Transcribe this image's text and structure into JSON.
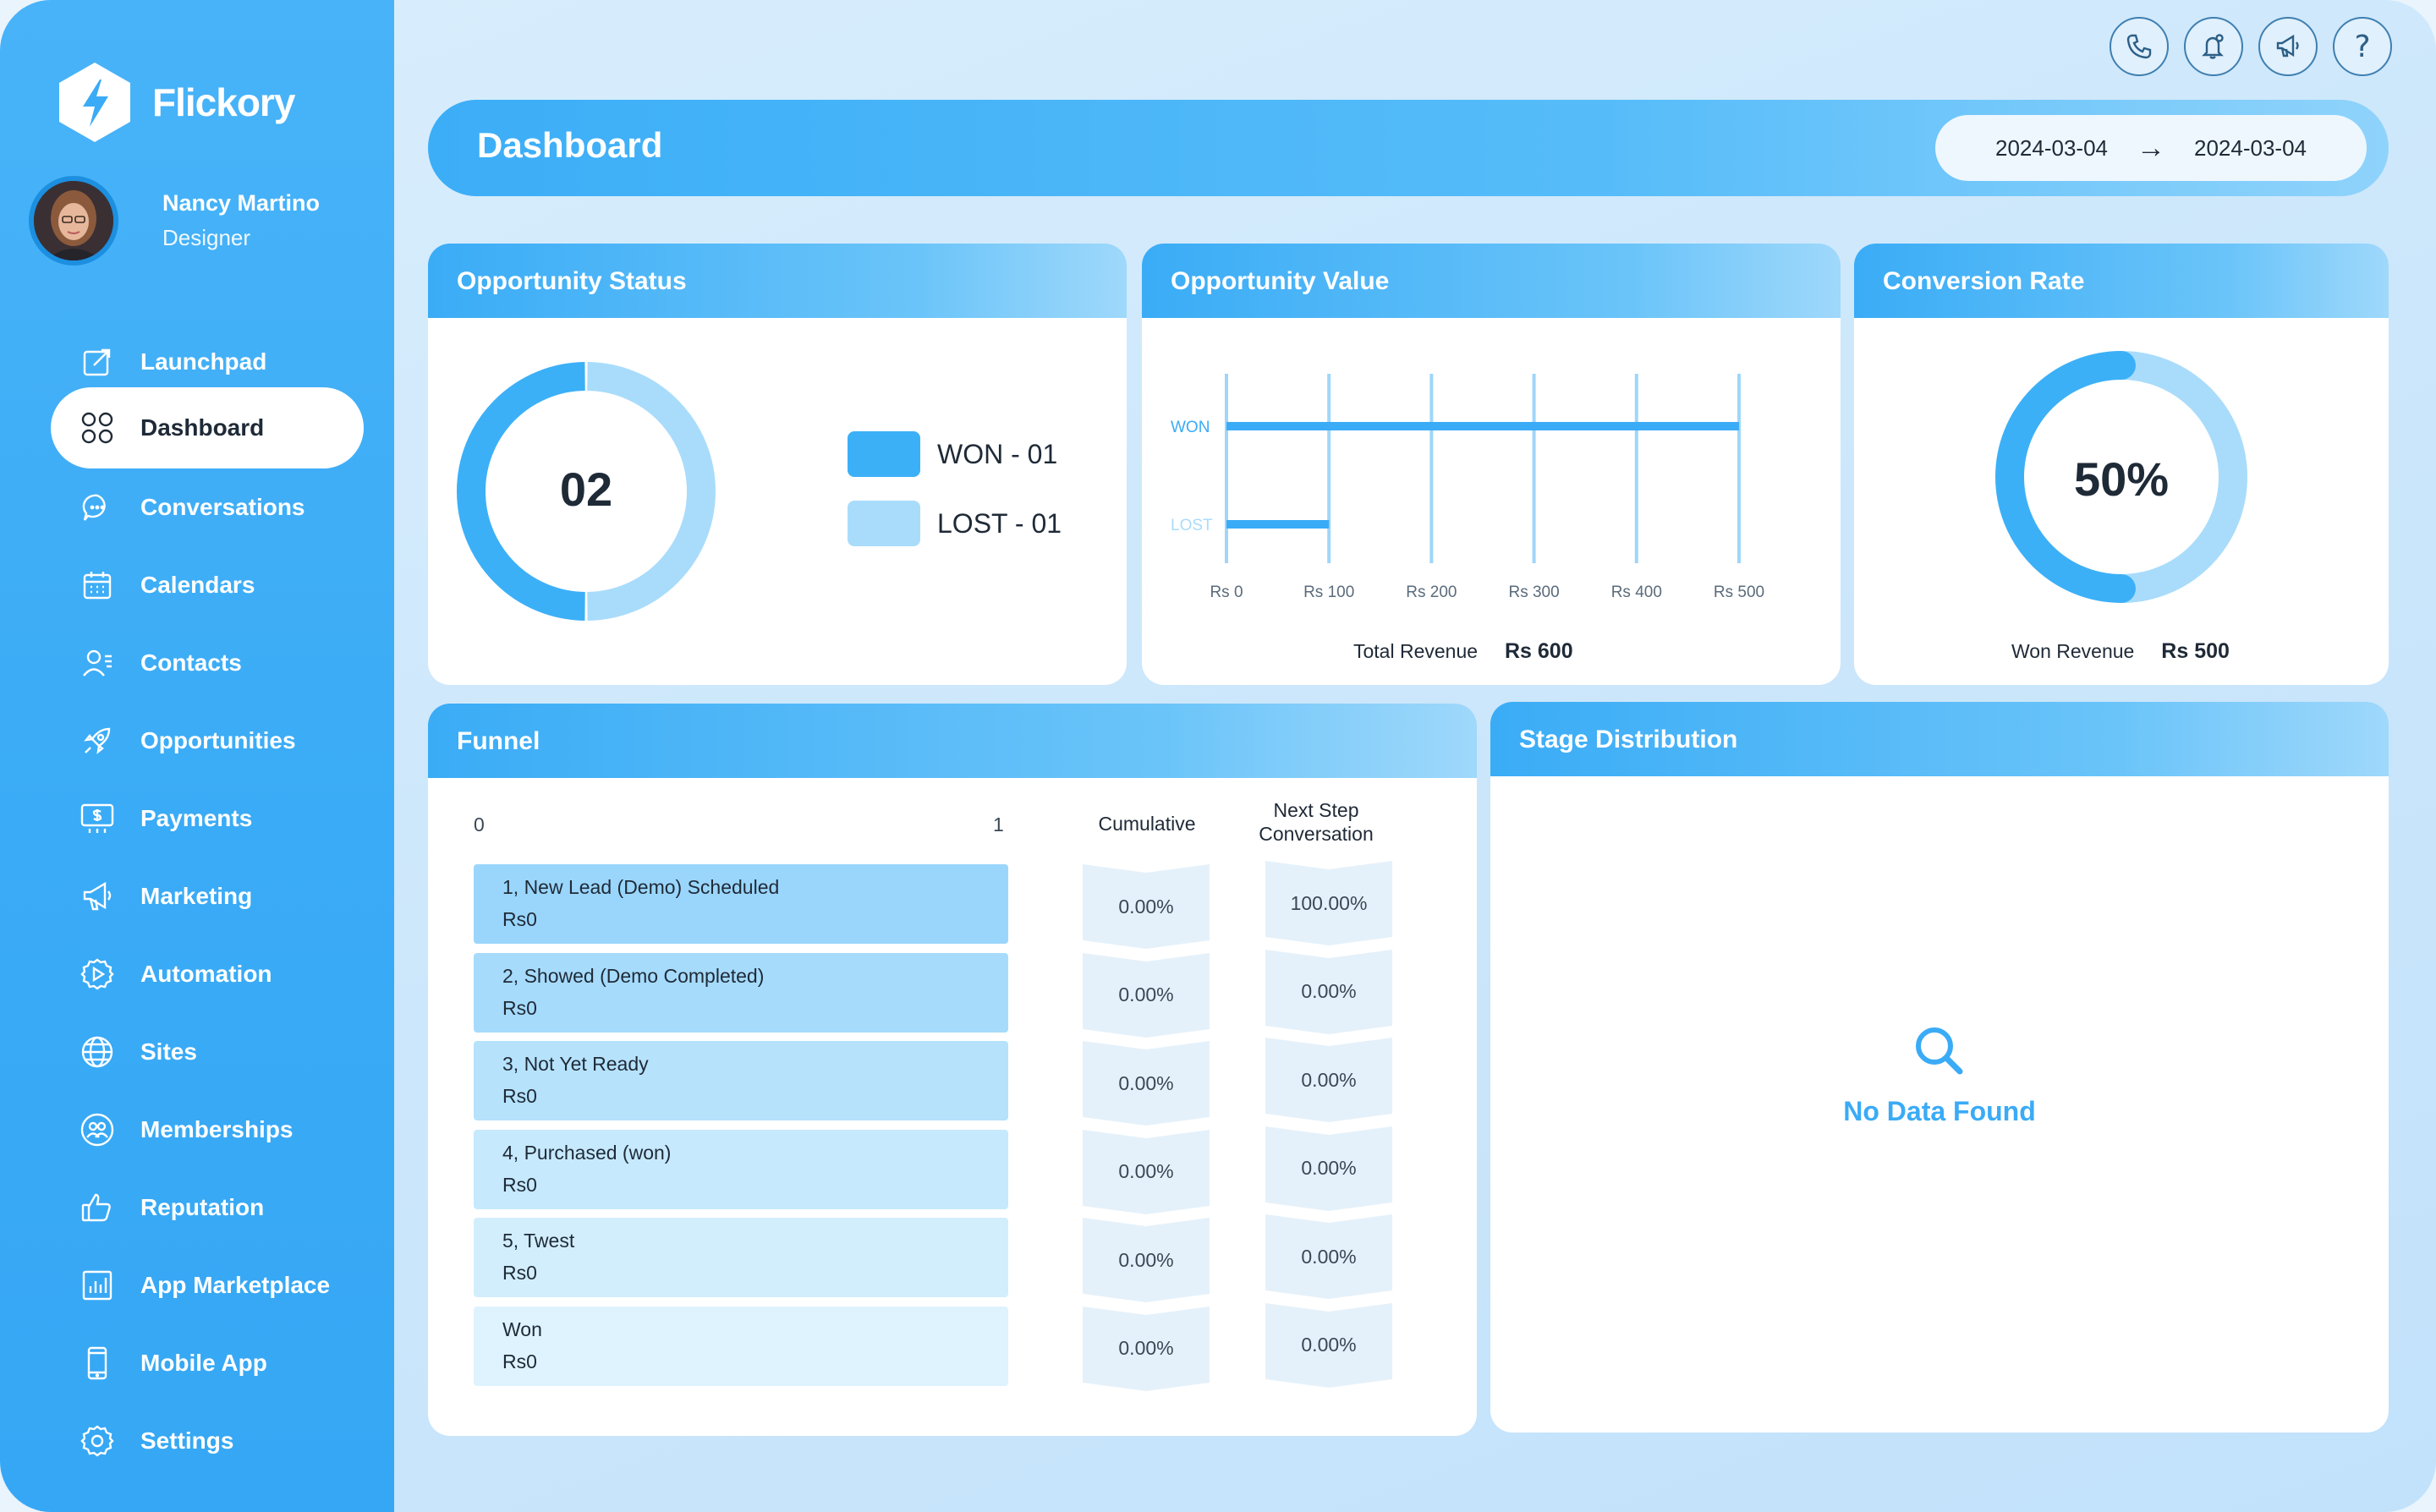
{
  "app": {
    "name": "Flickory"
  },
  "user": {
    "name": "Nancy Martino",
    "role": "Designer"
  },
  "nav": [
    {
      "label": "Launchpad",
      "icon": "launchpad-icon"
    },
    {
      "label": "Dashboard",
      "icon": "dashboard-grid-icon",
      "active": true
    },
    {
      "label": "Conversations",
      "icon": "chat-bubble-icon"
    },
    {
      "label": "Calendars",
      "icon": "calendar-icon"
    },
    {
      "label": "Contacts",
      "icon": "contacts-icon"
    },
    {
      "label": "Opportunities",
      "icon": "rocket-icon"
    },
    {
      "label": "Payments",
      "icon": "payments-icon"
    },
    {
      "label": "Marketing",
      "icon": "megaphone-icon"
    },
    {
      "label": "Automation",
      "icon": "automation-gear-icon"
    },
    {
      "label": "Sites",
      "icon": "globe-icon"
    },
    {
      "label": "Memberships",
      "icon": "memberships-icon"
    },
    {
      "label": "Reputation",
      "icon": "thumbs-up-icon"
    },
    {
      "label": "App Marketplace",
      "icon": "marketplace-chart-icon"
    },
    {
      "label": "Mobile App",
      "icon": "mobile-phone-icon"
    },
    {
      "label": "Settings",
      "icon": "settings-gear-icon"
    }
  ],
  "topbar": {
    "icons": [
      "phone-icon",
      "notification-bell-icon",
      "megaphone-icon",
      "help-icon"
    ],
    "help_label": "?"
  },
  "header": {
    "title": "Dashboard",
    "date_from": "2024-03-04",
    "date_to": "2024-03-04",
    "arrow": "→"
  },
  "opportunity_status": {
    "title": "Opportunity Status",
    "total": "02",
    "legend": [
      {
        "label": "WON - 01",
        "color": "#3cb0f7"
      },
      {
        "label": "LOST - 01",
        "color": "#a9dcfb"
      }
    ]
  },
  "opportunity_value": {
    "title": "Opportunity Value",
    "total_revenue_label": "Total Revenue",
    "total_revenue_value": "Rs 600"
  },
  "conversion_rate": {
    "title": "Conversion Rate",
    "value_label": "50%",
    "value": 0.5,
    "won_revenue_label": "Won Revenue",
    "won_revenue_value": "Rs 500"
  },
  "chart_data": [
    {
      "type": "pie",
      "name": "opportunity-status-donut",
      "categories": [
        "WON",
        "LOST"
      ],
      "values": [
        1,
        1
      ],
      "colors": [
        "#3cb0f7",
        "#a9dcfb"
      ]
    },
    {
      "type": "bar",
      "orientation": "horizontal",
      "name": "opportunity-value-bars",
      "categories": [
        "WON",
        "LOST"
      ],
      "values": [
        500,
        100
      ],
      "xlim": [
        0,
        500
      ],
      "x_ticks": [
        0,
        100,
        200,
        300,
        400,
        500
      ],
      "x_tick_labels": [
        "Rs 0",
        "Rs 100",
        "Rs 200",
        "Rs 300",
        "Rs 400",
        "Rs 500"
      ],
      "grid": true
    },
    {
      "type": "pie",
      "name": "conversion-rate-donut",
      "categories": [
        "Converted",
        "Remaining"
      ],
      "values": [
        50,
        50
      ],
      "colors": [
        "#3cb0f7",
        "#a9dcfb"
      ]
    }
  ],
  "funnel": {
    "title": "Funnel",
    "axis_min": "0",
    "axis_max": "1",
    "col_cumulative": "Cumulative",
    "col_next_step": "Next Step Conversation",
    "rows": [
      {
        "stage": "1, New Lead (Demo) Scheduled",
        "amount": "Rs0",
        "cumulative": "0.00%",
        "next": "100.00%",
        "color": "#9ad6fc"
      },
      {
        "stage": "2, Showed (Demo Completed)",
        "amount": "Rs0",
        "cumulative": "0.00%",
        "next": "0.00%",
        "color": "#a6dbfc"
      },
      {
        "stage": "3, Not Yet Ready",
        "amount": "Rs0",
        "cumulative": "0.00%",
        "next": "0.00%",
        "color": "#b6e2fc"
      },
      {
        "stage": "4, Purchased (won)",
        "amount": "Rs0",
        "cumulative": "0.00%",
        "next": "0.00%",
        "color": "#c6e9fd"
      },
      {
        "stage": "5, Twest",
        "amount": "Rs0",
        "cumulative": "0.00%",
        "next": "0.00%",
        "color": "#d2eefd"
      },
      {
        "stage": "Won",
        "amount": "Rs0",
        "cumulative": "0.00%",
        "next": "0.00%",
        "color": "#def3fe"
      }
    ]
  },
  "stage_distribution": {
    "title": "Stage Distribution",
    "empty_text": "No Data Found"
  }
}
